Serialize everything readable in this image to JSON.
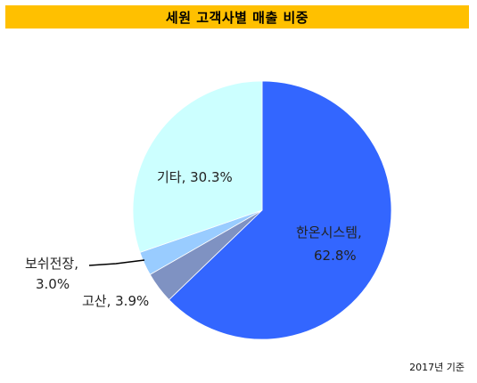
{
  "chart_data": {
    "type": "pie",
    "title": "세원 고객사별 매출 비중",
    "slices": [
      {
        "name": "한온시스템",
        "value": 62.8,
        "color": "#3366ff",
        "line1": "한온시스템,",
        "line2": "62.8%"
      },
      {
        "name": "고산",
        "value": 3.9,
        "color": "#7f92c2",
        "line1": "고산, 3.9%"
      },
      {
        "name": "보쉬전장",
        "value": 3.0,
        "color": "#99ccff",
        "line1": "보쉬전장,",
        "line2": "3.0%"
      },
      {
        "name": "기타",
        "value": 30.3,
        "color": "#ccffff",
        "line1": "기타, 30.3%"
      }
    ],
    "start": "12 o'clock",
    "direction": "clockwise",
    "footnote": "2017년 기준"
  }
}
